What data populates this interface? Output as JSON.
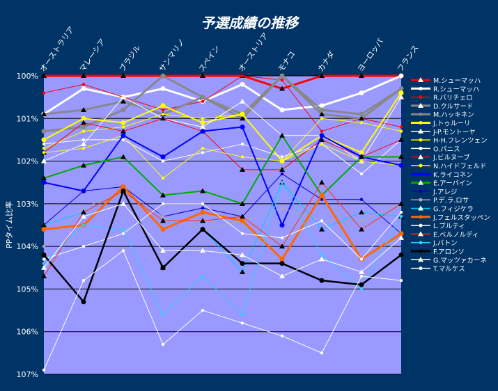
{
  "chart_data": {
    "type": "line",
    "title": "予選成績の推移",
    "ylabel": "PPタイム比率",
    "xlabel": "",
    "categories": [
      "オーストラリア",
      "マレーシア",
      "ブラジル",
      "サンマリノ",
      "スペイン",
      "オーストリア",
      "モナコ",
      "カナダ",
      "ヨーロッパ",
      "フランス"
    ],
    "ylim": [
      100,
      107
    ],
    "yticks": [
      "100%",
      "101%",
      "102%",
      "103%",
      "104%",
      "105%",
      "106%",
      "107%"
    ],
    "grid": true,
    "legend_position": "right",
    "series": [
      {
        "name": "M.シューマッハ",
        "color": "#ff0000",
        "values": [
          100.0,
          100.0,
          100.0,
          100.0,
          100.0,
          100.0,
          100.3,
          100.0,
          100.0,
          100.0
        ]
      },
      {
        "name": "R.シューマッハ",
        "color": "#ffffff",
        "values": [
          100.9,
          100.3,
          100.5,
          100.3,
          100.6,
          100.2,
          100.8,
          100.7,
          100.4,
          100.0
        ]
      },
      {
        "name": "R.バリチェロ",
        "color": "#ff0000",
        "values": [
          100.4,
          100.2,
          100.5,
          100.8,
          100.6,
          100.0,
          100.1,
          101.3,
          101.0,
          101.2
        ]
      },
      {
        "name": "D.クルサード",
        "color": "#888888",
        "values": [
          100.9,
          100.8,
          100.6,
          100.9,
          100.5,
          101.0,
          100.0,
          100.9,
          101.0,
          100.3
        ]
      },
      {
        "name": "M.ハッキネン",
        "color": "#888888",
        "values": [
          101.3,
          101.2,
          100.8,
          100.0,
          100.5,
          100.9,
          100.0,
          100.8,
          100.9,
          100.3
        ]
      },
      {
        "name": "J.トゥルーリ",
        "color": "#ffff00",
        "values": [
          101.5,
          101.0,
          101.1,
          100.7,
          101.1,
          100.9,
          102.0,
          101.4,
          101.8,
          100.4
        ]
      },
      {
        "name": "J-P.モントーヤ",
        "color": "#ffffff",
        "values": [
          102.0,
          101.6,
          100.5,
          101.0,
          101.2,
          100.6,
          101.4,
          101.4,
          102.0,
          100.5
        ]
      },
      {
        "name": "H-H.フレンツェン",
        "color": "#ffff00",
        "values": [
          101.7,
          101.3,
          101.2,
          100.9,
          101.0,
          100.9,
          102.0,
          101.0,
          101.1,
          101.3
        ]
      },
      {
        "name": "O.パニス",
        "color": "#ffffff",
        "values": [
          101.6,
          101.5,
          101.5,
          102.0,
          101.8,
          101.6,
          101.9,
          101.6,
          102.3,
          101.5
        ]
      },
      {
        "name": "J.ビルヌーブ",
        "color": "#ff0000",
        "values": [
          101.8,
          101.1,
          101.3,
          101.0,
          101.3,
          102.2,
          102.2,
          101.5,
          101.9,
          101.5
        ]
      },
      {
        "name": "N.ハイドフェルド",
        "color": "#ffff00",
        "values": [
          101.8,
          101.7,
          101.4,
          102.4,
          101.7,
          101.9,
          102.0,
          101.6,
          102.0,
          102.1
        ]
      },
      {
        "name": "K.ライコネン",
        "color": "#0000ff",
        "values": [
          102.5,
          102.7,
          101.4,
          101.9,
          101.3,
          101.2,
          103.5,
          101.4,
          101.9,
          102.1
        ]
      },
      {
        "name": "E.アーバイン",
        "color": "#00aa00",
        "values": [
          102.4,
          102.1,
          101.9,
          102.8,
          102.7,
          103.0,
          101.4,
          102.8,
          101.9,
          101.9
        ]
      },
      {
        "name": "J.アレジ",
        "color": "#0000cc",
        "values": [
          103.5,
          102.7,
          102.6,
          103.3,
          103.1,
          103.3,
          102.3,
          102.9,
          102.9,
          103.7
        ]
      },
      {
        "name": "P.デ.ラ.ロサ",
        "color": "#aaaaaa",
        "values": [
          104.0,
          103.1,
          102.7,
          103.3,
          103.6,
          103.4,
          103.1,
          103.4,
          103.4,
          103.0
        ]
      },
      {
        "name": "G.フィジケラ",
        "color": "#00ccff",
        "values": [
          103.5,
          103.2,
          102.7,
          104.5,
          103.6,
          104.6,
          102.5,
          103.6,
          103.2,
          103.3
        ]
      },
      {
        "name": "J.フェルスタッペン",
        "color": "#ff6600",
        "values": [
          103.6,
          103.5,
          102.6,
          103.6,
          103.2,
          103.4,
          104.3,
          102.8,
          104.3,
          103.7
        ]
      },
      {
        "name": "L.ブルティ",
        "color": "#ffffff",
        "values": [
          104.3,
          104.0,
          103.7,
          103.0,
          103.0,
          103.7,
          103.8,
          103.4,
          104.3,
          103.2
        ]
      },
      {
        "name": "E.ベルノルディ",
        "color": "#ff3300",
        "values": [
          104.7,
          103.2,
          102.7,
          103.4,
          103.4,
          103.3,
          104.0,
          102.5,
          103.6,
          103.0
        ]
      },
      {
        "name": "J.バトン",
        "color": "#33ccff",
        "values": [
          104.4,
          103.5,
          103.6,
          105.6,
          104.7,
          105.6,
          102.5,
          104.2,
          105.0,
          103.3
        ]
      },
      {
        "name": "F.アロンソ",
        "color": "#000000",
        "values": [
          104.2,
          105.3,
          102.7,
          104.5,
          103.6,
          104.4,
          104.4,
          104.8,
          104.9,
          104.2
        ]
      },
      {
        "name": "G.マッツァカーネ",
        "color": "#ffffff",
        "values": [
          104.5,
          103.3,
          103.0,
          104.1,
          104.1,
          104.2,
          104.7,
          104.3,
          104.6,
          103.8
        ]
      },
      {
        "name": "T.マルケス",
        "color": "#ffffff",
        "values": [
          106.9,
          104.8,
          104.1,
          106.3,
          105.5,
          105.8,
          106.1,
          106.5,
          104.7,
          104.8
        ]
      }
    ]
  }
}
